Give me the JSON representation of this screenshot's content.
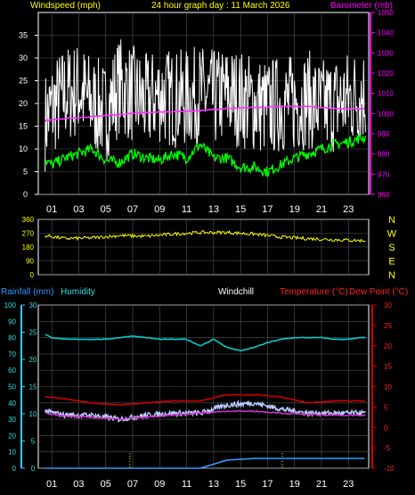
{
  "header": {
    "windspeed_label": "Windspeed (mph)",
    "title": "24 hour graph day : 11 March 2026",
    "barometer_label": "Barometer (mb)"
  },
  "colors": {
    "background": "#000000",
    "grid": "#555555",
    "axis": "#ffffff",
    "wind_gust": "#ffffff",
    "wind_avg": "#00ff00",
    "barometer": "#ff33ff",
    "barometer_text": "#ff00ff",
    "header_text": "#ffff00",
    "wind_dir": "#ffff00",
    "rain": "#3399ff",
    "humidity": "#00cccc",
    "humidity_text": "#33dddd",
    "temperature": "#cc0000",
    "temperature_text": "#ff2222",
    "dew_point": "#cc33cc",
    "windchill": "#bbccff",
    "rain_axis": "#33ccff",
    "temp_axis": "#cc0000",
    "marker": "#ffff00"
  },
  "x_axis": {
    "hours": [
      "01",
      "03",
      "05",
      "07",
      "09",
      "11",
      "13",
      "15",
      "17",
      "19",
      "21",
      "23"
    ]
  },
  "wind_barometer_panel": {
    "left_axis_ticks": [
      "0",
      "5",
      "10",
      "15",
      "20",
      "25",
      "30",
      "35"
    ],
    "right_axis_ticks": [
      "960",
      "970",
      "980",
      "990",
      "1000",
      "1010",
      "1020",
      "1030",
      "1040",
      "1050"
    ]
  },
  "direction_panel": {
    "left_axis_ticks": [
      "0",
      "90",
      "180",
      "270",
      "360"
    ],
    "compass": [
      "N",
      "W",
      "S",
      "E",
      "N"
    ]
  },
  "lower_panel": {
    "rainfall_label": "Rainfall (mm)",
    "humidity_label": "Humidity",
    "windchill_label": "Windchill",
    "temperature_label": "Temperature (°C)",
    "dewpoint_label": "Dew Point (°C)",
    "humidity_axis_ticks": [
      "0",
      "10",
      "20",
      "30",
      "40",
      "50",
      "60",
      "70",
      "80",
      "90",
      "100"
    ],
    "rain_axis_ticks": [
      "0",
      "5",
      "10",
      "15",
      "20",
      "25",
      "30"
    ],
    "temp_axis_ticks": [
      "-10",
      "-5",
      "0",
      "5",
      "10",
      "15",
      "20",
      "25",
      "30"
    ]
  },
  "chart_data": [
    {
      "type": "line",
      "name": "wind_and_barometer",
      "x_unit": "hour",
      "xlim": [
        0,
        24.5
      ],
      "ylim": [
        0,
        40
      ],
      "y2lim": [
        960,
        1050
      ],
      "series": [
        {
          "name": "Windspeed (mph)",
          "role": "gust",
          "axis": "left",
          "x": [
            0.5,
            1,
            2,
            3,
            4,
            5,
            6,
            7,
            8,
            9,
            10,
            11,
            12,
            13,
            14,
            15,
            16,
            17,
            18,
            19,
            20,
            21,
            22,
            23,
            24
          ],
          "values": [
            16,
            19,
            22,
            23,
            20,
            18,
            24,
            22,
            20,
            22,
            21,
            21,
            22,
            21,
            22,
            21,
            20,
            19,
            20,
            20,
            21,
            19,
            20,
            21,
            22
          ]
        },
        {
          "name": "Windspeed (mph)",
          "role": "average",
          "axis": "left",
          "x": [
            0.5,
            1,
            2,
            3,
            4,
            5,
            6,
            7,
            8,
            9,
            10,
            11,
            12,
            13,
            14,
            15,
            16,
            17,
            18,
            19,
            20,
            21,
            22,
            23,
            24
          ],
          "values": [
            7.5,
            6.5,
            8,
            9,
            10,
            7.5,
            7,
            9,
            8,
            7.5,
            9,
            8,
            11,
            8,
            8,
            6,
            6,
            5,
            6.5,
            8,
            9,
            10,
            11,
            11.5,
            12.5
          ]
        },
        {
          "name": "Barometer (mb)",
          "axis": "right",
          "x": [
            0.5,
            2,
            4,
            6,
            8,
            10,
            12,
            14,
            16,
            18,
            20,
            22,
            24
          ],
          "values": [
            996.5,
            997.5,
            998.5,
            999.5,
            1000.5,
            1001,
            1001.5,
            1002.5,
            1003,
            1003.5,
            1003.5,
            1002.5,
            1002.5
          ]
        }
      ]
    },
    {
      "type": "line",
      "name": "wind_direction",
      "x_unit": "hour",
      "xlim": [
        0,
        24.5
      ],
      "ylim": [
        0,
        360
      ],
      "series": [
        {
          "name": "Wind direction",
          "x": [
            0.5,
            2,
            4,
            6,
            8,
            10,
            12,
            14,
            16,
            18,
            20,
            22,
            24
          ],
          "values": [
            255,
            235,
            240,
            255,
            250,
            265,
            275,
            275,
            265,
            245,
            235,
            228,
            222
          ]
        }
      ]
    },
    {
      "type": "line",
      "name": "rain_humidity_temperature",
      "x_unit": "hour",
      "xlim": [
        0,
        24.5
      ],
      "ylim": [
        0,
        100
      ],
      "y2lim": [
        -10,
        30
      ],
      "series": [
        {
          "name": "Humidity",
          "axis": "left",
          "x": [
            0.5,
            1,
            2,
            3,
            4,
            5,
            6,
            7,
            8,
            9,
            10,
            11,
            12,
            13,
            14,
            15,
            16,
            17,
            18,
            19,
            20,
            21,
            22,
            23,
            24
          ],
          "values": [
            82,
            80,
            79,
            79,
            79,
            79,
            80,
            81,
            80,
            79,
            79,
            79,
            75,
            79,
            74,
            72,
            74,
            77,
            79,
            80,
            80,
            80,
            79,
            79,
            80
          ]
        },
        {
          "name": "Temperature (°C)",
          "axis": "right",
          "x": [
            0.5,
            2,
            4,
            6,
            8,
            10,
            12,
            14,
            16,
            18,
            20,
            22,
            24
          ],
          "values": [
            7.5,
            7,
            6,
            5.5,
            6,
            6.5,
            6.5,
            8,
            8,
            7.5,
            6,
            6.5,
            6.5
          ]
        },
        {
          "name": "Dew Point (°C)",
          "axis": "right",
          "x": [
            0.5,
            2,
            4,
            6,
            8,
            10,
            12,
            14,
            16,
            18,
            20,
            22,
            24
          ],
          "values": [
            3.5,
            2.8,
            2.5,
            2,
            2.5,
            3,
            3.5,
            4,
            4,
            3.5,
            3.2,
            3,
            3
          ]
        },
        {
          "name": "Windchill",
          "axis": "right",
          "x": [
            0.5,
            2,
            4,
            6,
            8,
            10,
            12,
            14,
            16,
            18,
            20,
            22,
            24
          ],
          "values": [
            4,
            3,
            3,
            2,
            3,
            3.5,
            3.5,
            5.5,
            6,
            4.5,
            3.5,
            3.5,
            3.5
          ]
        },
        {
          "name": "Rainfall (mm)",
          "axis": "rain",
          "x": [
            0.5,
            12,
            14,
            16,
            24
          ],
          "values": [
            0,
            0,
            1.5,
            1.8,
            1.8
          ]
        }
      ]
    }
  ]
}
